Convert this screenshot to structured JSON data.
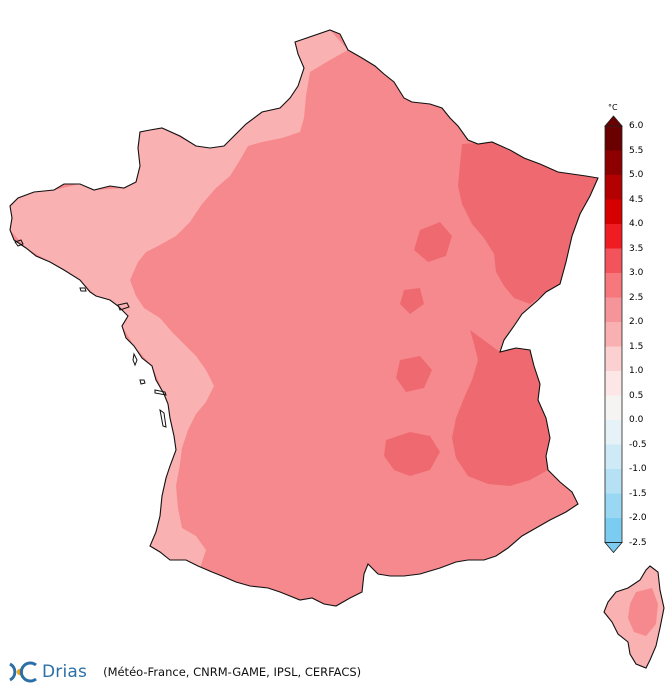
{
  "legend": {
    "unit": "°C",
    "ticks": [
      "6.0",
      "5.5",
      "5.0",
      "4.5",
      "4.0",
      "3.5",
      "3.0",
      "2.5",
      "2.0",
      "1.5",
      "1.0",
      "0.5",
      "0.0",
      "-0.5",
      "-1.0",
      "-1.5",
      "-2.0",
      "-2.5"
    ],
    "colors": [
      "#6a0000",
      "#8e0000",
      "#b30000",
      "#d60000",
      "#ef1c24",
      "#f3545b",
      "#f6787c",
      "#f69599",
      "#f8b0b1",
      "#fad0d0",
      "#fde6e6",
      "#f6f3f3",
      "#e6f1f8",
      "#ceeaf7",
      "#b6e1f5",
      "#9ad7f3",
      "#7ccbf0"
    ]
  },
  "regions": {
    "light_color": "#f9b1b2",
    "medium_color": "#f6898d",
    "dark_color": "#ef6a70"
  },
  "footer": {
    "logo_text": "Drias",
    "credits": "(Météo-France, CNRM-GAME, IPSL, CERFACS)"
  }
}
